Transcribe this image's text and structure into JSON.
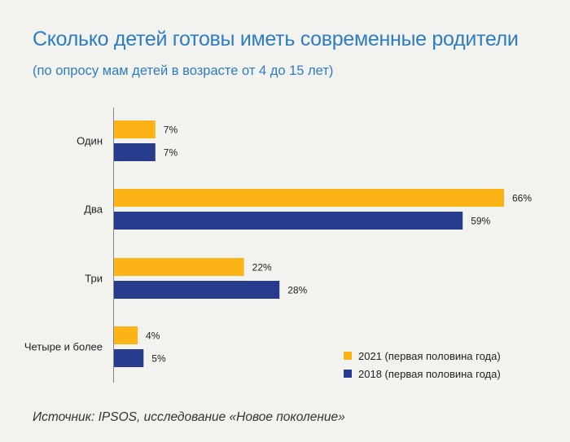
{
  "title": "Сколько детей готовы иметь современные родители",
  "subtitle": "(по опросу мам детей в возрасте от 4 до 15 лет)",
  "source": "Источник: IPSOS, исследование «Новое поколение»",
  "colors": {
    "series_2021": "#fbb316",
    "series_2018": "#283c8e",
    "axis": "#888888"
  },
  "chart_data": {
    "type": "bar",
    "orientation": "horizontal",
    "categories": [
      "Один",
      "Два",
      "Три",
      "Четыре и более"
    ],
    "series": [
      {
        "name": "2021 (первая половина года)",
        "values": [
          7,
          66,
          22,
          4
        ],
        "labels": [
          "7%",
          "66%",
          "22%",
          "4%"
        ]
      },
      {
        "name": "2018 (первая половина года)",
        "values": [
          7,
          59,
          28,
          5
        ],
        "labels": [
          "7%",
          "59%",
          "28%",
          "5%"
        ]
      }
    ],
    "unit": "%",
    "xlim": [
      0,
      66
    ],
    "grid": false,
    "legend_position": "bottom-right"
  }
}
